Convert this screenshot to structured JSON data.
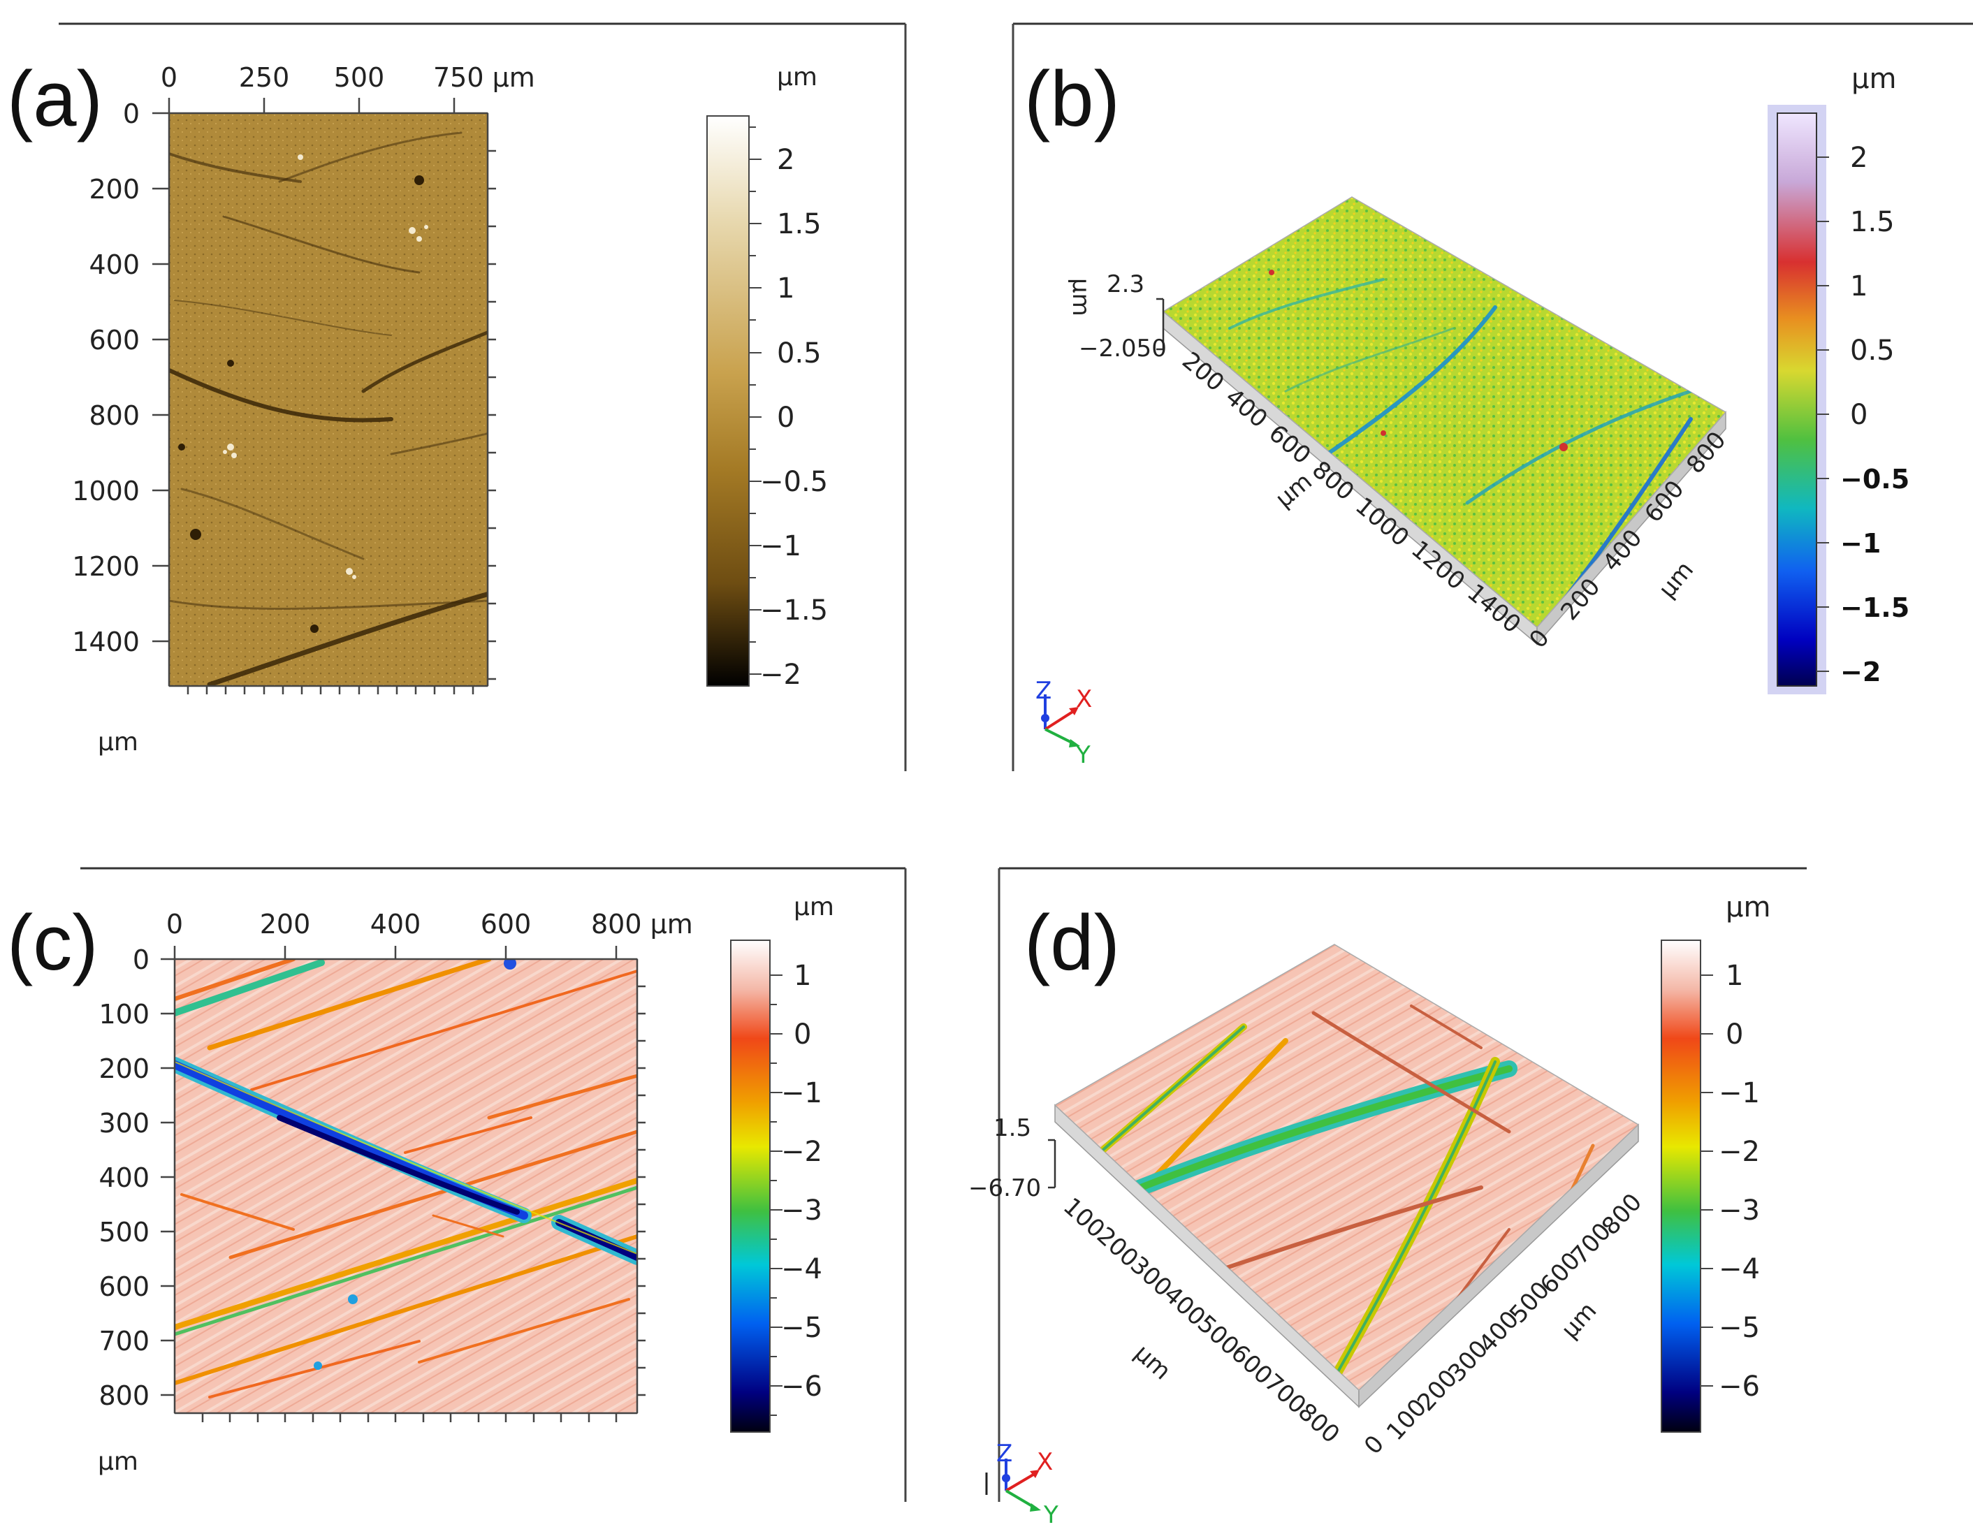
{
  "figure": {
    "panels": [
      {
        "id": "a",
        "label": "(a)",
        "view": "2D",
        "x_ticks": [
          "0",
          "250",
          "500",
          "750 µm"
        ],
        "y_ticks": [
          "0",
          "200",
          "400",
          "600",
          "800",
          "1000",
          "1200",
          "1400"
        ],
        "axis_unit": "µm",
        "colorbar_unit": "µm",
        "colorbar_ticks": [
          "2",
          "1.5",
          "1",
          "0.5",
          "0",
          "−0.5",
          "−1",
          "−1.5",
          "−2"
        ],
        "colormap": [
          "#ffffff",
          "#e8d9b0",
          "#c9a24e",
          "#a47a25",
          "#6e4d12",
          "#000000"
        ]
      },
      {
        "id": "b",
        "label": "(b)",
        "view": "3D",
        "z_unit": "µm",
        "z_ticks": [
          "2.3",
          "−2.050"
        ],
        "long_axis_ticks": [
          "200",
          "400",
          "600",
          "800",
          "1000",
          "1200",
          "1400"
        ],
        "long_axis_unit": "µm",
        "short_axis_ticks": [
          "0",
          "200",
          "400",
          "600",
          "800"
        ],
        "short_axis_unit": "µm",
        "colorbar_unit": "µm",
        "colorbar_ticks": [
          "2",
          "1.5",
          "1",
          "0.5",
          "0",
          "−0.5",
          "−1",
          "−1.5",
          "−2"
        ],
        "triad": {
          "z": "Z",
          "x": "X",
          "y": "Y"
        },
        "colormap": [
          "#efe6ff",
          "#c8a8d8",
          "#d83030",
          "#e89020",
          "#d8d830",
          "#50c040",
          "#10b8c0",
          "#1060f0",
          "#0000c0",
          "#000050"
        ]
      },
      {
        "id": "c",
        "label": "(c)",
        "view": "2D",
        "x_ticks": [
          "0",
          "200",
          "400",
          "600",
          "800 µm"
        ],
        "y_ticks": [
          "0",
          "100",
          "200",
          "300",
          "400",
          "500",
          "600",
          "700",
          "800"
        ],
        "axis_unit": "µm",
        "colorbar_unit": "µm",
        "colorbar_ticks": [
          "1",
          "0",
          "−1",
          "−2",
          "−3",
          "−4",
          "−5",
          "−6"
        ],
        "colormap": [
          "#ffffff",
          "#f4b8a8",
          "#f04818",
          "#f0a000",
          "#e8e800",
          "#40c040",
          "#00c8d8",
          "#0060f0",
          "#000080",
          "#000010"
        ]
      },
      {
        "id": "d",
        "label": "(d)",
        "view": "3D",
        "z_ticks": [
          "1.5",
          "−6.70"
        ],
        "left_axis_ticks": [
          "100",
          "200",
          "300",
          "400",
          "500",
          "600",
          "700",
          "800"
        ],
        "left_axis_unit": "µm",
        "right_axis_ticks": [
          "0",
          "100",
          "200",
          "300",
          "400",
          "500",
          "600",
          "700",
          "800"
        ],
        "right_axis_unit": "µm",
        "corner_tick": "0",
        "colorbar_unit": "µm",
        "colorbar_ticks": [
          "1",
          "0",
          "−1",
          "−2",
          "−3",
          "−4",
          "−5",
          "−6"
        ],
        "triad": {
          "z": "Z",
          "x": "X",
          "y": "Y"
        },
        "colormap": [
          "#ffffff",
          "#f4b8a8",
          "#f04818",
          "#f0a000",
          "#e8e800",
          "#40c040",
          "#00c8d8",
          "#0060f0",
          "#000080",
          "#000010"
        ]
      }
    ]
  }
}
